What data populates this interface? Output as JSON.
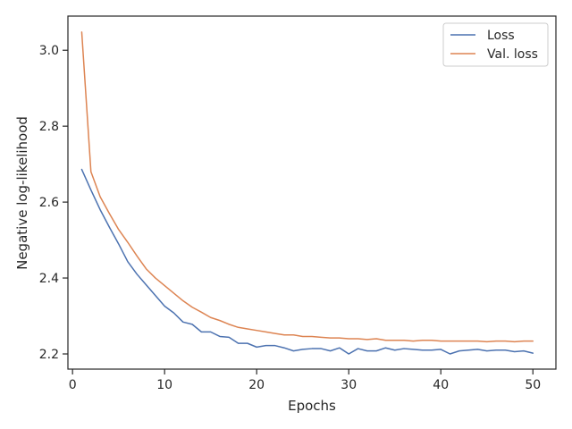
{
  "chart_data": {
    "type": "line",
    "title": "",
    "xlabel": "Epochs",
    "ylabel": "Negative log-likelihood",
    "xlim": [
      -0.5,
      52.5
    ],
    "ylim": [
      2.16,
      3.09
    ],
    "x_ticks": [
      0,
      10,
      20,
      30,
      40,
      50
    ],
    "x_tick_labels": [
      "0",
      "10",
      "20",
      "30",
      "40",
      "50"
    ],
    "y_ticks": [
      2.2,
      2.4,
      2.6,
      2.8,
      3.0
    ],
    "y_tick_labels": [
      "2.2",
      "2.4",
      "2.6",
      "2.8",
      "3.0"
    ],
    "grid": false,
    "legend_position": "top-right",
    "x": [
      1,
      2,
      3,
      4,
      5,
      6,
      7,
      8,
      9,
      10,
      11,
      12,
      13,
      14,
      15,
      16,
      17,
      18,
      19,
      20,
      21,
      22,
      23,
      24,
      25,
      26,
      27,
      28,
      29,
      30,
      31,
      32,
      33,
      34,
      35,
      36,
      37,
      38,
      39,
      40,
      41,
      42,
      43,
      44,
      45,
      46,
      47,
      48,
      49,
      50
    ],
    "series": [
      {
        "name": "Loss",
        "color": "#4c72b0",
        "values": [
          2.686,
          2.632,
          2.58,
          2.534,
          2.49,
          2.443,
          2.41,
          2.382,
          2.354,
          2.326,
          2.308,
          2.284,
          2.278,
          2.258,
          2.258,
          2.246,
          2.244,
          2.228,
          2.228,
          2.218,
          2.222,
          2.222,
          2.216,
          2.208,
          2.212,
          2.214,
          2.214,
          2.208,
          2.216,
          2.2,
          2.214,
          2.208,
          2.208,
          2.216,
          2.21,
          2.214,
          2.212,
          2.21,
          2.21,
          2.212,
          2.2,
          2.208,
          2.21,
          2.212,
          2.208,
          2.21,
          2.21,
          2.206,
          2.208,
          2.202
        ]
      },
      {
        "name": "Val. loss",
        "color": "#dd8452",
        "values": [
          3.048,
          2.68,
          2.614,
          2.57,
          2.528,
          2.494,
          2.458,
          2.424,
          2.4,
          2.38,
          2.36,
          2.34,
          2.323,
          2.31,
          2.296,
          2.288,
          2.278,
          2.27,
          2.266,
          2.262,
          2.258,
          2.254,
          2.25,
          2.25,
          2.246,
          2.246,
          2.244,
          2.242,
          2.242,
          2.24,
          2.24,
          2.238,
          2.24,
          2.236,
          2.236,
          2.236,
          2.234,
          2.236,
          2.236,
          2.234,
          2.234,
          2.234,
          2.234,
          2.234,
          2.232,
          2.234,
          2.234,
          2.232,
          2.234,
          2.234
        ]
      }
    ]
  }
}
